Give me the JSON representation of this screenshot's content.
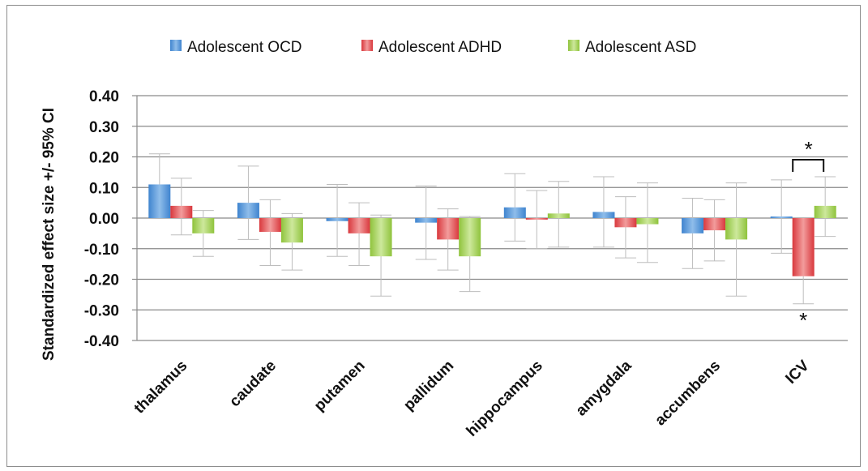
{
  "chart_data": {
    "type": "bar",
    "title": "",
    "xlabel": "",
    "ylabel": "Standardized effect size  +/- 95% CI",
    "ylim": [
      -0.4,
      0.4
    ],
    "yticks": [
      "0.40",
      "0.30",
      "0.20",
      "0.10",
      "0.00",
      "-0.10",
      "-0.20",
      "-0.30",
      "-0.40"
    ],
    "ytick_values": [
      0.4,
      0.3,
      0.2,
      0.1,
      0.0,
      -0.1,
      -0.2,
      -0.3,
      -0.4
    ],
    "grid": true,
    "legend_position": "top",
    "categories": [
      "thalamus",
      "caudate",
      "putamen",
      "pallidum",
      "hippocampus",
      "amygdala",
      "accumbens",
      "ICV"
    ],
    "series": [
      {
        "name": "Adolescent OCD",
        "color": "#5b9bd5",
        "values": [
          0.11,
          0.05,
          -0.01,
          -0.015,
          0.035,
          0.02,
          -0.05,
          0.005
        ],
        "ci_low": [
          0.015,
          -0.07,
          -0.125,
          -0.135,
          -0.075,
          -0.095,
          -0.165,
          -0.115
        ],
        "ci_high": [
          0.21,
          0.17,
          0.11,
          0.105,
          0.145,
          0.135,
          0.065,
          0.125
        ]
      },
      {
        "name": "Adolescent ADHD",
        "color": "#e0575b",
        "values": [
          0.04,
          -0.045,
          -0.05,
          -0.07,
          -0.005,
          -0.03,
          -0.04,
          -0.19
        ],
        "ci_low": [
          -0.055,
          -0.155,
          -0.155,
          -0.17,
          -0.1,
          -0.13,
          -0.14,
          -0.28
        ],
        "ci_high": [
          0.13,
          0.06,
          0.05,
          0.03,
          0.09,
          0.07,
          0.06,
          -0.095
        ]
      },
      {
        "name": "Adolescent ASD",
        "color": "#a4cd5c",
        "values": [
          -0.05,
          -0.08,
          -0.125,
          -0.125,
          0.015,
          -0.02,
          -0.07,
          0.04
        ],
        "ci_low": [
          -0.125,
          -0.17,
          -0.255,
          -0.24,
          -0.095,
          -0.145,
          -0.255,
          -0.06
        ],
        "ci_high": [
          0.025,
          0.015,
          0.01,
          0.005,
          0.12,
          0.115,
          0.115,
          0.135
        ]
      }
    ],
    "annotations": [
      {
        "text": "*",
        "note": "ADHD ICV vs controls"
      },
      {
        "text": "*",
        "note": "ADHD vs ASD ICV bracket"
      }
    ]
  }
}
